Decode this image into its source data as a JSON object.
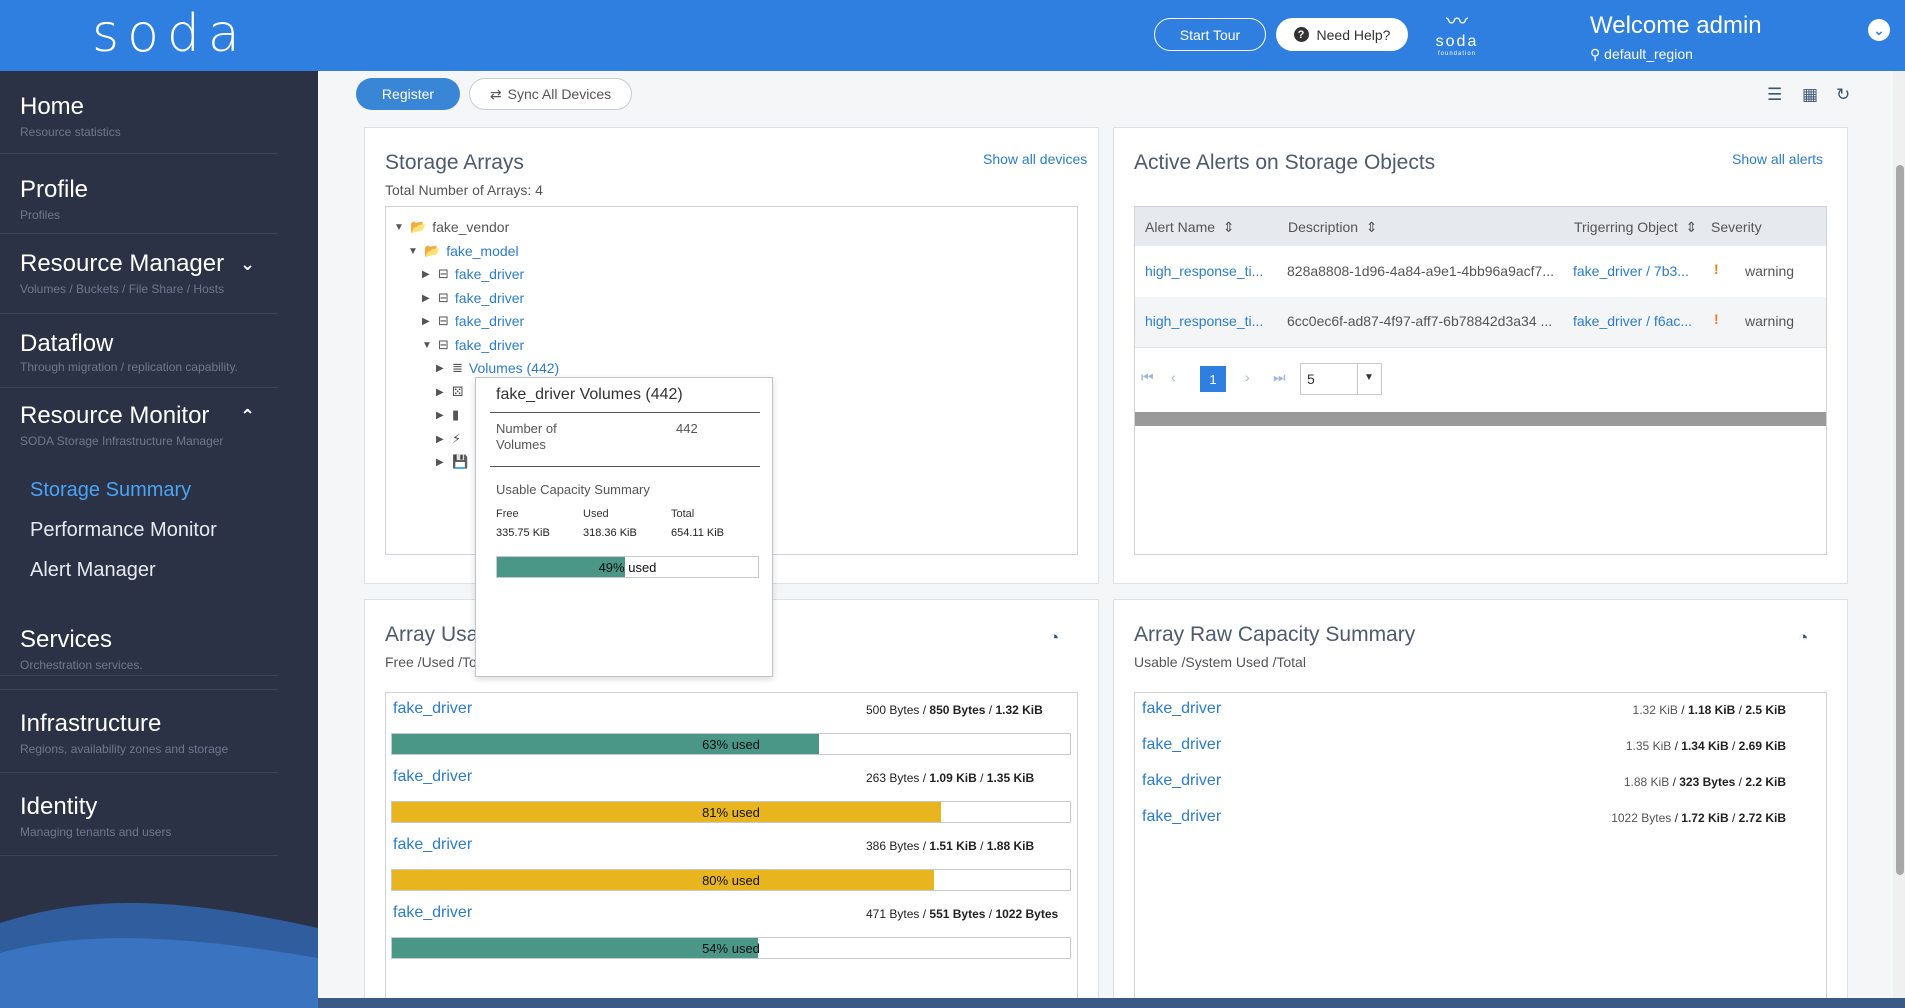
{
  "header": {
    "logo": "soda",
    "start_tour": "Start Tour",
    "need_help": "Need Help?",
    "foundation_word": "soda",
    "foundation_sub": "foundation",
    "welcome": "Welcome admin",
    "region": "default_region"
  },
  "sidebar": {
    "items": [
      {
        "title": "Home",
        "sub": "Resource statistics"
      },
      {
        "title": "Profile",
        "sub": "Profiles"
      },
      {
        "title": "Resource Manager",
        "sub": "Volumes / Buckets / File Share / Hosts"
      },
      {
        "title": "Dataflow",
        "sub": "Through migration / replication capability."
      },
      {
        "title": "Resource Monitor",
        "sub": "SODA Storage Infrastructure Manager"
      },
      {
        "title": "Services",
        "sub": "Orchestration services."
      },
      {
        "title": "Infrastructure",
        "sub": "Regions, availability zones and storage"
      },
      {
        "title": "Identity",
        "sub": "Managing tenants and users"
      }
    ],
    "monitor_sub": [
      "Storage Summary",
      "Performance Monitor",
      "Alert Manager"
    ]
  },
  "toolbar": {
    "register": "Register",
    "sync": "Sync All Devices"
  },
  "storage_arrays": {
    "title": "Storage Arrays",
    "total": "Total Number of Arrays: 4",
    "link": "Show all devices",
    "tree": {
      "vendor": "fake_vendor",
      "model": "fake_model",
      "drivers": [
        "fake_driver",
        "fake_driver",
        "fake_driver",
        "fake_driver"
      ],
      "volumes": "Volumes (442)"
    }
  },
  "tooltip": {
    "title": "fake_driver Volumes (442)",
    "num_label": "Number of Volumes",
    "num_value": "442",
    "cap_title": "Usable Capacity Summary",
    "free_label": "Free",
    "used_label": "Used",
    "total_label": "Total",
    "free": "335.75 KiB",
    "used": "318.36 KiB",
    "total": "654.11 KiB",
    "percent": 0.49,
    "percent_label": "49% used"
  },
  "alerts": {
    "title": "Active Alerts on Storage Objects",
    "link": "Show all alerts",
    "columns": [
      "Alert Name",
      "Description",
      "Trigerring Object",
      "Severity"
    ],
    "rows": [
      {
        "name": "high_response_ti...",
        "desc": "828a8808-1d96-4a84-a9e1-4bb96a9acf7...",
        "object": "fake_driver / 7b3...",
        "severity": "warning"
      },
      {
        "name": "high_response_ti...",
        "desc": "6cc0ec6f-ad87-4f97-aff7-6b78842d3a34 ...",
        "object": "fake_driver / f6ac...",
        "severity": "warning"
      }
    ],
    "page": "1",
    "page_size": "5"
  },
  "array_usage": {
    "title": "Array Usa",
    "sub": "Free /Used /To",
    "rows": [
      {
        "name": "fake_driver",
        "free": "500 Bytes",
        "used": "850 Bytes",
        "total": "1.32 KiB",
        "percent": 0.63,
        "label": "63% used",
        "color": "#4a9687"
      },
      {
        "name": "fake_driver",
        "free": "263 Bytes",
        "used": "1.09 KiB",
        "total": "1.35 KiB",
        "percent": 0.81,
        "label": "81% used",
        "color": "#e8b51e"
      },
      {
        "name": "fake_driver",
        "free": "386 Bytes",
        "used": "1.51 KiB",
        "total": "1.88 KiB",
        "percent": 0.8,
        "label": "80% used",
        "color": "#e8b51e"
      },
      {
        "name": "fake_driver",
        "free": "471 Bytes",
        "used": "551 Bytes",
        "total": "1022 Bytes",
        "percent": 0.54,
        "label": "54% used",
        "color": "#4a9687"
      }
    ]
  },
  "raw_capacity": {
    "title": "Array Raw Capacity Summary",
    "sub": "Usable /System Used /Total",
    "rows": [
      {
        "name": "fake_driver",
        "usable": "1.32 KiB",
        "system": "1.18 KiB",
        "total": "2.5 KiB"
      },
      {
        "name": "fake_driver",
        "usable": "1.35 KiB",
        "system": "1.34 KiB",
        "total": "2.69 KiB"
      },
      {
        "name": "fake_driver",
        "usable": "1.88 KiB",
        "system": "323 Bytes",
        "total": "2.2 KiB"
      },
      {
        "name": "fake_driver",
        "usable": "1022 Bytes",
        "system": "1.72 KiB",
        "total": "2.72 KiB"
      }
    ]
  },
  "colors": {
    "header": "#2e7fe0",
    "sidebar": "#2c3245",
    "accent": "#4aa4f5",
    "ok": "#4a9687",
    "warn": "#e8b51e"
  }
}
